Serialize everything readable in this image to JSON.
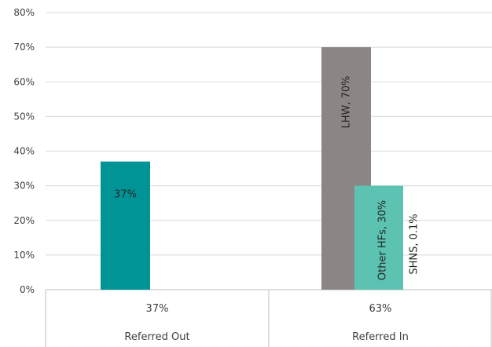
{
  "chart_data": {
    "type": "bar",
    "title": "",
    "xlabel": "",
    "ylabel": "",
    "ylim": [
      0,
      80
    ],
    "y_ticks": [
      "0%",
      "10%",
      "20%",
      "30%",
      "40%",
      "50%",
      "60%",
      "70%",
      "80%"
    ],
    "grid": true,
    "legend": "none",
    "categories": [
      {
        "name": "Referred Out",
        "total_label": "37%"
      },
      {
        "name": "Referred In",
        "total_label": "63%"
      }
    ],
    "bars": [
      {
        "category": "Referred Out",
        "value": 37,
        "label": "37%",
        "label_rotated": false,
        "color": "#009496"
      },
      {
        "category": "Referred In",
        "value": 70,
        "label": "LHW, 70%",
        "label_rotated": true,
        "color": "#8c8586"
      },
      {
        "category": "Referred In",
        "value": 30,
        "label": "Other HFs, 30%",
        "label_rotated": true,
        "color": "#5cc2b1"
      },
      {
        "category": "Referred In",
        "value": 0.1,
        "label": "SHNS, 0.1%",
        "label_rotated": true,
        "color": "#5cc2b1"
      }
    ]
  }
}
